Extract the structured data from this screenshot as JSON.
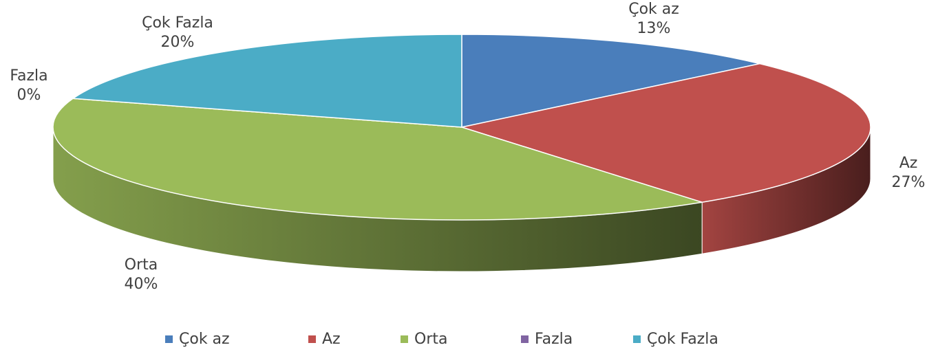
{
  "chart_data": {
    "type": "pie",
    "categories": [
      "Çok az",
      "Az",
      "Orta",
      "Fazla",
      "Çok Fazla"
    ],
    "values": [
      13,
      27,
      40,
      0,
      20
    ],
    "value_labels": [
      "13%",
      "27%",
      "40%",
      "0%",
      "20%"
    ],
    "colors": [
      "#4a7ebb",
      "#c0504d",
      "#9bbb59",
      "#8064a2",
      "#4bacc6"
    ],
    "legend": "bottom"
  }
}
